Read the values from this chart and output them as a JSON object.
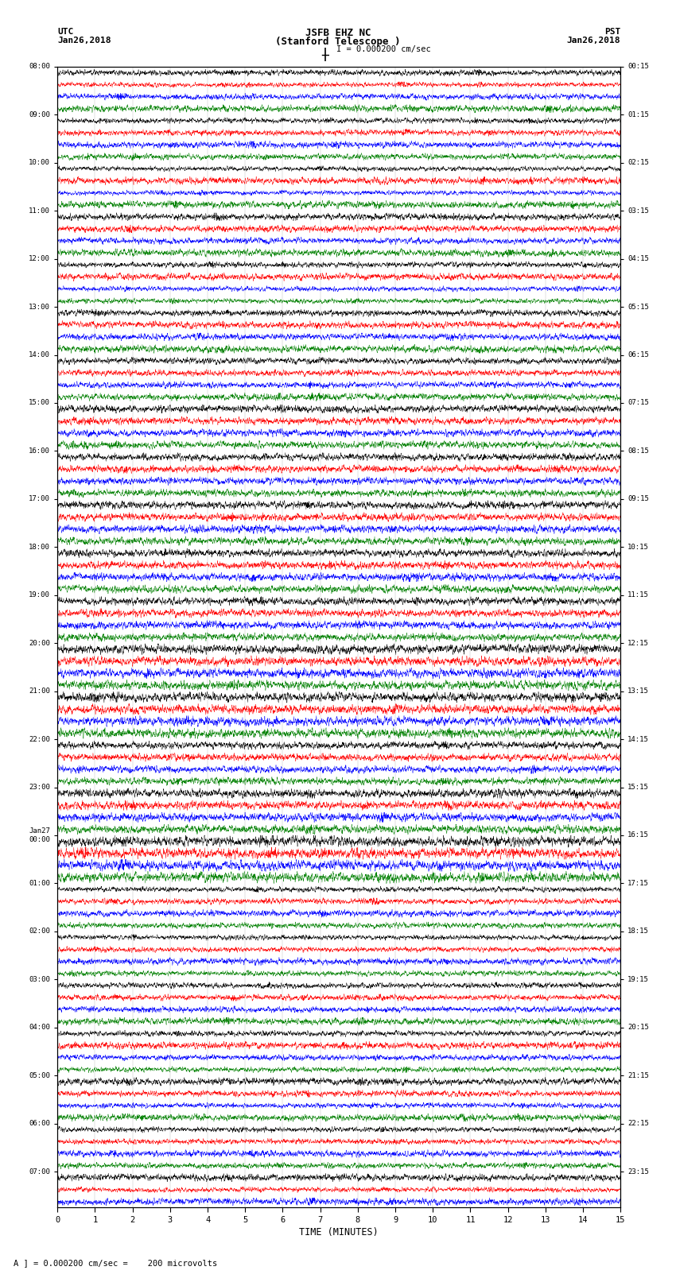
{
  "title_line1": "JSFB EHZ NC",
  "title_line2": "(Stanford Telescope )",
  "title_line3": "I = 0.000200 cm/sec",
  "utc_label": "UTC",
  "utc_date": "Jan26,2018",
  "pst_label": "PST",
  "pst_date": "Jan26,2018",
  "xlabel": "TIME (MINUTES)",
  "footnote": "A ] = 0.000200 cm/sec =    200 microvolts",
  "left_times_utc": [
    "08:00",
    "",
    "",
    "",
    "09:00",
    "",
    "",
    "",
    "10:00",
    "",
    "",
    "",
    "11:00",
    "",
    "",
    "",
    "12:00",
    "",
    "",
    "",
    "13:00",
    "",
    "",
    "",
    "14:00",
    "",
    "",
    "",
    "15:00",
    "",
    "",
    "",
    "16:00",
    "",
    "",
    "",
    "17:00",
    "",
    "",
    "",
    "18:00",
    "",
    "",
    "",
    "19:00",
    "",
    "",
    "",
    "20:00",
    "",
    "",
    "",
    "21:00",
    "",
    "",
    "",
    "22:00",
    "",
    "",
    "",
    "23:00",
    "",
    "",
    "",
    "Jan27\n00:00",
    "",
    "",
    "",
    "01:00",
    "",
    "",
    "",
    "02:00",
    "",
    "",
    "",
    "03:00",
    "",
    "",
    "",
    "04:00",
    "",
    "",
    "",
    "05:00",
    "",
    "",
    "",
    "06:00",
    "",
    "",
    "",
    "07:00",
    "",
    ""
  ],
  "right_times_pst": [
    "00:15",
    "",
    "",
    "",
    "01:15",
    "",
    "",
    "",
    "02:15",
    "",
    "",
    "",
    "03:15",
    "",
    "",
    "",
    "04:15",
    "",
    "",
    "",
    "05:15",
    "",
    "",
    "",
    "06:15",
    "",
    "",
    "",
    "07:15",
    "",
    "",
    "",
    "08:15",
    "",
    "",
    "",
    "09:15",
    "",
    "",
    "",
    "10:15",
    "",
    "",
    "",
    "11:15",
    "",
    "",
    "",
    "12:15",
    "",
    "",
    "",
    "13:15",
    "",
    "",
    "",
    "14:15",
    "",
    "",
    "",
    "15:15",
    "",
    "",
    "",
    "16:15",
    "",
    "",
    "",
    "17:15",
    "",
    "",
    "",
    "18:15",
    "",
    "",
    "",
    "19:15",
    "",
    "",
    "",
    "20:15",
    "",
    "",
    "",
    "21:15",
    "",
    "",
    "",
    "22:15",
    "",
    "",
    "",
    "23:15",
    "",
    ""
  ],
  "colors": [
    "black",
    "red",
    "blue",
    "green"
  ],
  "n_rows": 95,
  "n_points": 3600,
  "x_min": 0,
  "x_max": 15,
  "background_color": "white",
  "line_width": 0.3,
  "seed": 42
}
